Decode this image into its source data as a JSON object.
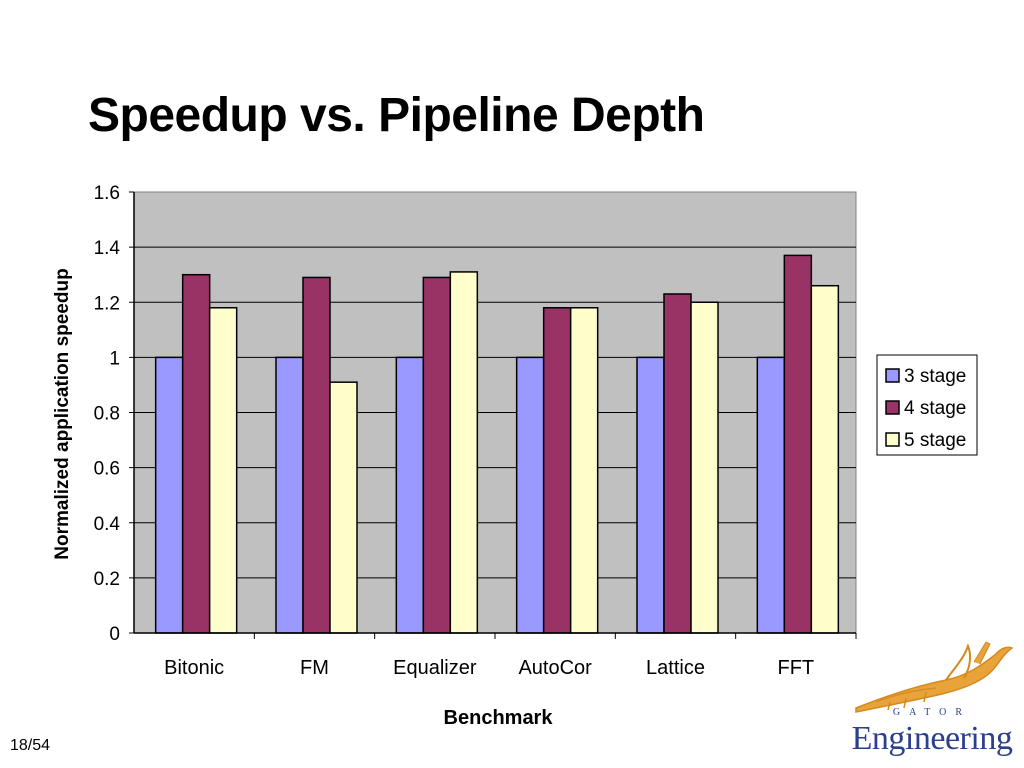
{
  "slide": {
    "title": "Speedup vs. Pipeline Depth",
    "page_number": "18/54"
  },
  "logo": {
    "word": "Engineering",
    "sub": "GATOR",
    "icon": "gator-icon"
  },
  "chart_data": {
    "type": "bar",
    "title": "",
    "xlabel": "Benchmark",
    "ylabel": "Normalized application speedup",
    "ylim": [
      0,
      1.6
    ],
    "yticks": [
      "0",
      "0.2",
      "0.4",
      "0.6",
      "0.8",
      "1",
      "1.2",
      "1.4",
      "1.6"
    ],
    "grid": true,
    "legend_position": "right",
    "categories": [
      "Bitonic",
      "FM",
      "Equalizer",
      "AutoCor",
      "Lattice",
      "FFT"
    ],
    "series": [
      {
        "name": "3 stage",
        "color": "#9999ff",
        "values": [
          1.0,
          1.0,
          1.0,
          1.0,
          1.0,
          1.0
        ]
      },
      {
        "name": "4 stage",
        "color": "#993366",
        "values": [
          1.3,
          1.29,
          1.29,
          1.18,
          1.23,
          1.37
        ]
      },
      {
        "name": "5 stage",
        "color": "#ffffcc",
        "values": [
          1.18,
          0.91,
          1.31,
          1.18,
          1.2,
          1.26
        ]
      }
    ],
    "plot_background": "#c0c0c0"
  }
}
